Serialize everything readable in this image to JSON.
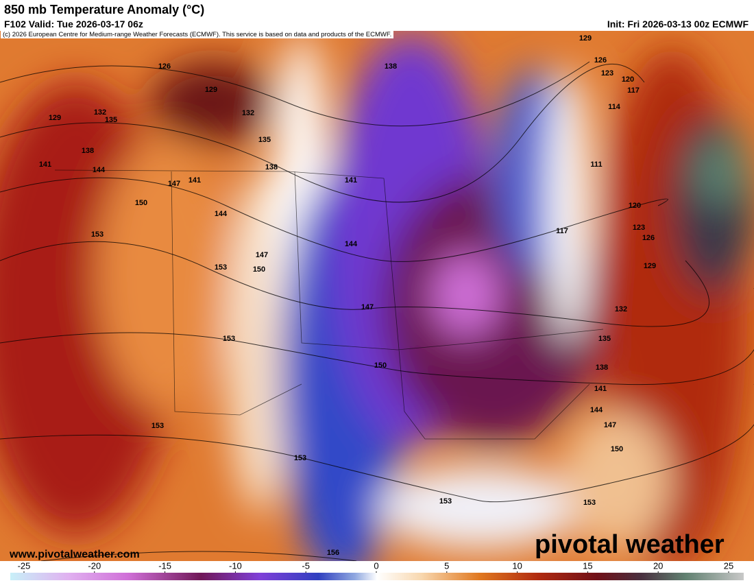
{
  "header": {
    "title": "850 mb Temperature Anomaly (°C)",
    "valid": "F102 Valid: Tue 2026-03-17 06z",
    "init": "Init: Fri 2026-03-13 00z ECMWF",
    "copyright": "(c) 2026 European Centre for Medium-range Weather Forecasts (ECMWF). This service is based on data and products of the ECMWF."
  },
  "contour_labels": [
    126,
    129,
    132,
    132,
    135,
    129,
    138,
    135,
    141,
    144,
    138,
    147,
    141,
    150,
    144,
    153,
    147,
    153,
    150,
    144,
    141,
    138,
    147,
    153,
    150,
    153,
    153,
    156,
    153,
    153,
    150,
    147,
    144,
    141,
    138,
    135,
    132,
    129,
    126,
    123,
    117,
    120,
    111,
    114,
    117,
    120,
    123,
    126,
    129
  ],
  "colorbar": {
    "ticks": [
      -25,
      -20,
      -15,
      -10,
      -5,
      0,
      5,
      10,
      15,
      20,
      25
    ]
  },
  "footer": {
    "site": "www.pivotalweather.com",
    "logo": "pivotal weather"
  }
}
